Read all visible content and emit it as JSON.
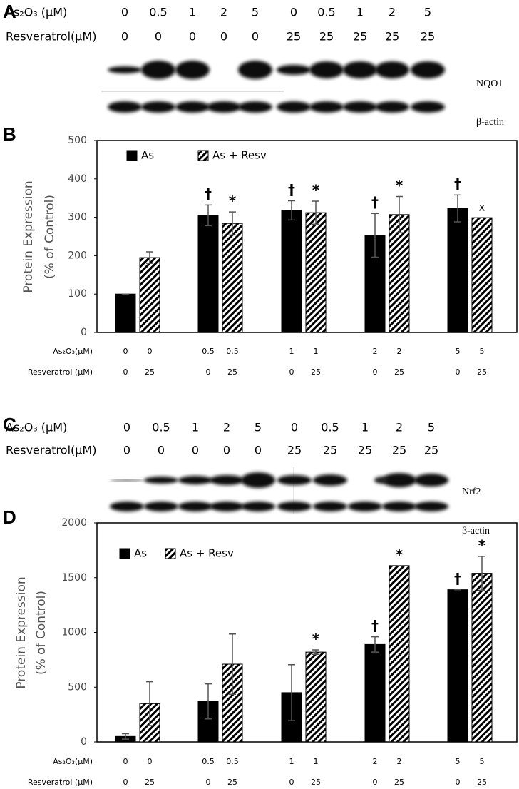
{
  "panel_a": {
    "panel_label": "A",
    "rows": [
      {
        "label": "As₂O₃ (μM)",
        "values": [
          0,
          0.5,
          1,
          2,
          5,
          0,
          0.5,
          1,
          2,
          5
        ]
      },
      {
        "label": "Resveratrol(μM)",
        "values": [
          0,
          0,
          0,
          0,
          0,
          25,
          25,
          25,
          25,
          25
        ]
      }
    ],
    "bands": [
      "NQO1",
      "β-actin"
    ]
  },
  "panel_c": {
    "panel_label": "C",
    "rows": [
      {
        "label": "As₂O₃ (μM)",
        "values": [
          0,
          0.5,
          1,
          2,
          5,
          0,
          0.5,
          1,
          2,
          5
        ]
      },
      {
        "label": "Resveratrol(μM)",
        "values": [
          0,
          0,
          0,
          0,
          0,
          25,
          25,
          25,
          25,
          25
        ]
      }
    ],
    "bands": [
      "Nrf2",
      "β-actin"
    ]
  },
  "chart_data": [
    {
      "type": "bar",
      "panel_label": "B",
      "ylabel": [
        "Protein Expression",
        "(% of Control)"
      ],
      "ylim": [
        0,
        500
      ],
      "yticks": [
        0,
        100,
        200,
        300,
        400,
        500
      ],
      "series": [
        {
          "name": "As",
          "color": "#000000",
          "hatch": false,
          "values": [
            100,
            305,
            318,
            253,
            323
          ],
          "errors": [
            0,
            27,
            25,
            57,
            35
          ],
          "value_annotations": [
            null,
            "†",
            "†",
            "†",
            "†"
          ]
        },
        {
          "name": "As + Resv",
          "color": "#000000",
          "hatch": true,
          "values": [
            195,
            284,
            312,
            307,
            299
          ],
          "errors": [
            15,
            30,
            30,
            47,
            0
          ],
          "value_annotations": [
            null,
            "*",
            "*",
            "*",
            "x"
          ]
        }
      ],
      "bar_labels": [
        {
          "label": "As₂O₃(μM)",
          "values": [
            0,
            0,
            0.5,
            0.5,
            1,
            1,
            2,
            2,
            5,
            5
          ]
        },
        {
          "label": "Resveratrol (μM)",
          "values": [
            0,
            25,
            0,
            25,
            0,
            25,
            0,
            25,
            0,
            25
          ]
        }
      ]
    },
    {
      "type": "bar",
      "panel_label": "D",
      "ylabel": [
        "Protein Expression",
        "(% of Control)"
      ],
      "ylim": [
        0,
        2000
      ],
      "yticks": [
        0,
        500,
        1000,
        1500,
        2000
      ],
      "series": [
        {
          "name": "As",
          "color": "#000000",
          "hatch": false,
          "values": [
            50,
            370,
            450,
            890,
            1390
          ],
          "errors": [
            25,
            160,
            255,
            70,
            0
          ],
          "value_annotations": [
            null,
            null,
            null,
            "†",
            "†"
          ]
        },
        {
          "name": "As + Resv",
          "color": "#000000",
          "hatch": true,
          "values": [
            350,
            710,
            820,
            1610,
            1540
          ],
          "errors": [
            200,
            275,
            20,
            0,
            155
          ],
          "value_annotations": [
            null,
            null,
            "*",
            "*",
            "*"
          ]
        }
      ],
      "bar_labels": [
        {
          "label": "As₂O₃(μM)",
          "values": [
            0,
            0,
            0.5,
            0.5,
            1,
            1,
            2,
            2,
            5,
            5
          ]
        },
        {
          "label": "Resveratrol (μM)",
          "values": [
            0,
            25,
            0,
            25,
            0,
            25,
            0,
            25,
            0,
            25
          ]
        }
      ]
    }
  ]
}
